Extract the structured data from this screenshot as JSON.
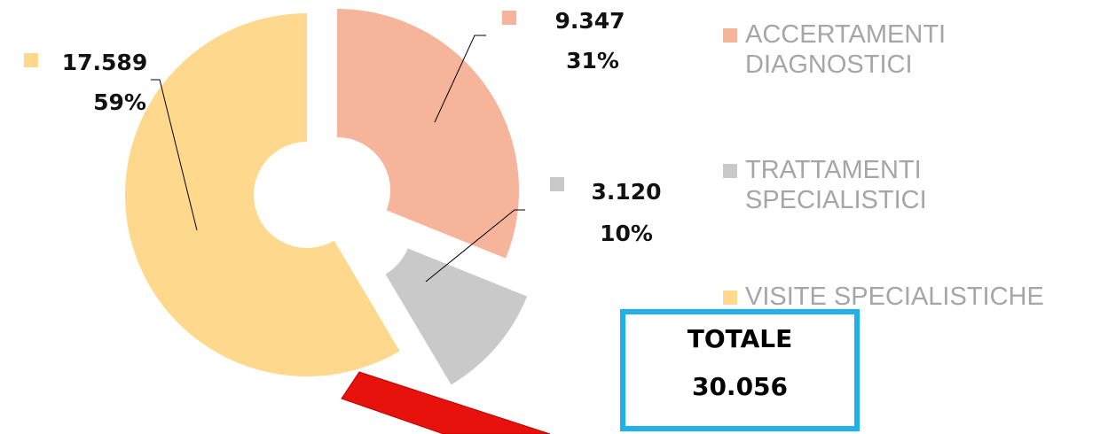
{
  "chart_data": {
    "type": "donut",
    "categories": [
      "ACCERTAMENTI DIAGNOSTICI",
      "TRATTAMENTI SPECIALISTICI",
      "VISITE SPECIALISTICHE"
    ],
    "values": [
      9347,
      3120,
      17589
    ],
    "value_labels": [
      "9.347",
      "3.120",
      "17.589"
    ],
    "percent_labels": [
      "31%",
      "10%",
      "59%"
    ],
    "colors": [
      "#f6b49b",
      "#c9c9c9",
      "#fed88c"
    ],
    "legend": "right",
    "total_title": "TOTALE",
    "total": {
      "value": 30056,
      "label": "30.056"
    }
  }
}
